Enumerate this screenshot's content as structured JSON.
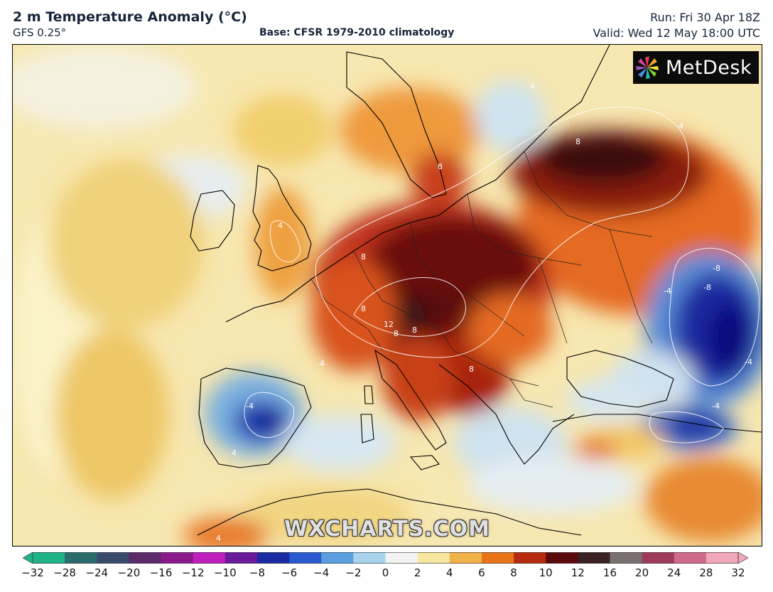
{
  "header": {
    "title": "2 m Temperature Anomaly (°C)",
    "model": "GFS 0.25°",
    "base": "Base: CFSR 1979-2010 climatology",
    "run": "Run: Fri 30 Apr 18Z",
    "valid": "Valid: Wed 12 May 18:00 UTC"
  },
  "logo": {
    "text": "MetDesk",
    "icon": "pinwheel-icon"
  },
  "watermark": "WXCHARTS.COM",
  "contour_labels": [
    "4",
    "4",
    "8",
    "8",
    "8",
    "8",
    "12",
    "8",
    "8",
    "8",
    "-4",
    "-4",
    "-8",
    "-8",
    "-4",
    "-4",
    "4",
    "4",
    "4",
    "-4"
  ],
  "colorbar": {
    "ticks": [
      "−32",
      "−28",
      "−24",
      "−20",
      "−16",
      "−12",
      "−10",
      "−8",
      "−6",
      "−4",
      "−2",
      "0",
      "2",
      "4",
      "6",
      "8",
      "10",
      "12",
      "16",
      "20",
      "24",
      "28",
      "32"
    ],
    "colors": [
      "#1fb38a",
      "#2a6b6b",
      "#3a4a6a",
      "#5a2a6a",
      "#8a1a8a",
      "#c020c0",
      "#6a1a9a",
      "#1a2aa0",
      "#2a5ad0",
      "#5aa0e0",
      "#a8d4ee",
      "#f4f4f4",
      "#f6e6a0",
      "#f2b24a",
      "#e8741a",
      "#b82a10",
      "#5a0a0a",
      "#3a2020",
      "#7a7070",
      "#a03a5a",
      "#d06a8a",
      "#f0a8b8"
    ]
  }
}
